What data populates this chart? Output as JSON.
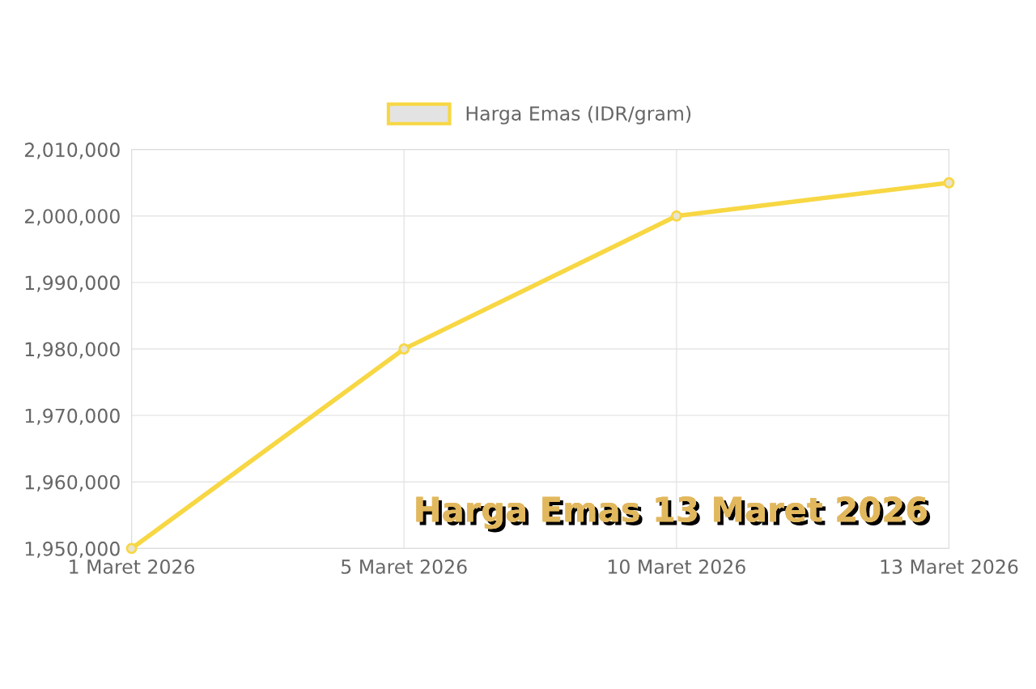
{
  "chart_data": {
    "type": "line",
    "categories": [
      "1 Maret 2026",
      "5 Maret 2026",
      "10 Maret 2026",
      "13 Maret 2026"
    ],
    "series": [
      {
        "name": "Harga Emas (IDR/gram)",
        "color": "#f7d743",
        "values": [
          1950000,
          1980000,
          2000000,
          2005000
        ]
      }
    ],
    "ylim": [
      1950000,
      2010000
    ],
    "yticks": [
      {
        "value": 1950000,
        "label": "1,950,000"
      },
      {
        "value": 1960000,
        "label": "1,960,000"
      },
      {
        "value": 1970000,
        "label": "1,970,000"
      },
      {
        "value": 1980000,
        "label": "1,980,000"
      },
      {
        "value": 1990000,
        "label": "1,990,000"
      },
      {
        "value": 2000000,
        "label": "2,000,000"
      },
      {
        "value": 2010000,
        "label": "2,010,000"
      }
    ],
    "grid": true,
    "legend": "top",
    "marker": "circle",
    "line_style": "solid",
    "annotations": [
      "Harga Emas 13 Maret 2026"
    ]
  }
}
